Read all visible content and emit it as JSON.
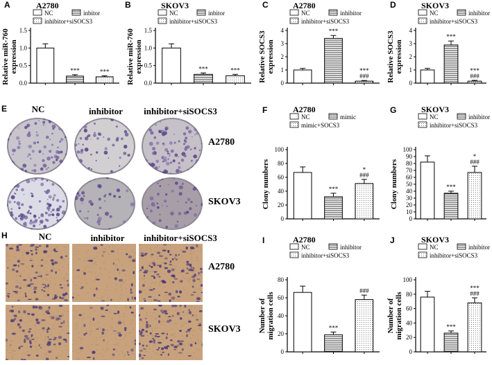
{
  "panels": {
    "A": "A",
    "B": "B",
    "C": "C",
    "D": "D",
    "E": "E",
    "F": "F",
    "G": "G",
    "H": "H",
    "I": "I",
    "J": "J"
  },
  "colony_photos": {
    "columns": [
      "NC",
      "inhibitor",
      "inhibitor+siSOCS3"
    ],
    "rows": [
      "A2780",
      "SKOV3"
    ]
  },
  "migration_photos": {
    "columns": [
      "NC",
      "inhibitor",
      "inhibitor+siSOCS3"
    ],
    "rows": [
      "A2780",
      "SKOV3"
    ]
  },
  "colors": {
    "bar_edge": "#000000",
    "dish_bg": "#d9d6dc",
    "stain": "#5b4a8a",
    "membrane": "#c9a47c"
  },
  "chart_data": [
    {
      "id": "A",
      "type": "bar",
      "title": "A2780",
      "xlabel": "",
      "ylabel": "Relative miR-760 expression",
      "categories": [
        "NC",
        "inhibitor",
        "inhibitor+siSOCS3"
      ],
      "values": [
        1.0,
        0.2,
        0.18
      ],
      "errors": [
        0.12,
        0.04,
        0.03
      ],
      "marks": [
        "",
        "***",
        "***"
      ],
      "patterns": [
        "none",
        "horizontal",
        "dots"
      ],
      "ylim": [
        0,
        1.5
      ],
      "yticks": [
        "0.0",
        "0.5",
        "1.0",
        "1.5"
      ],
      "legend": [
        "NC",
        "inbitor",
        "inhibitor+siSOCS3"
      ]
    },
    {
      "id": "B",
      "type": "bar",
      "title": "SKOV3",
      "xlabel": "",
      "ylabel": "Relative miR-760 expression",
      "categories": [
        "NC",
        "inhibitor",
        "inhibitor+siSOCS3"
      ],
      "values": [
        1.0,
        0.25,
        0.21
      ],
      "errors": [
        0.12,
        0.04,
        0.04
      ],
      "marks": [
        "",
        "***",
        "***"
      ],
      "patterns": [
        "none",
        "horizontal",
        "dots"
      ],
      "ylim": [
        0,
        1.5
      ],
      "yticks": [
        "0.0",
        "0.5",
        "1.0",
        "1.5"
      ],
      "legend": [
        "NC",
        "inbitor",
        "inhibitor+siSOCS3"
      ]
    },
    {
      "id": "C",
      "type": "bar",
      "title": "A2780",
      "xlabel": "",
      "ylabel": "Relative SOCS3 expression",
      "categories": [
        "NC",
        "inhibitor",
        "inhibitor+siSOCS3"
      ],
      "values": [
        1.0,
        3.4,
        0.15
      ],
      "errors": [
        0.12,
        0.22,
        0.05
      ],
      "marks": [
        "",
        "***",
        "***\n###"
      ],
      "patterns": [
        "none",
        "horizontal",
        "dots"
      ],
      "ylim": [
        0,
        4
      ],
      "yticks": [
        "0",
        "1",
        "2",
        "3",
        "4"
      ],
      "legend": [
        "NC",
        "inhibitor",
        "inhibitor+siSOCS3"
      ]
    },
    {
      "id": "D",
      "type": "bar",
      "title": "SKOV3",
      "xlabel": "",
      "ylabel": "Relative SOCS3 expression",
      "categories": [
        "NC",
        "inhibitor",
        "inhibitor+siSOCS3"
      ],
      "values": [
        1.0,
        2.9,
        0.15
      ],
      "errors": [
        0.12,
        0.3,
        0.06
      ],
      "marks": [
        "",
        "***",
        "***\n###"
      ],
      "patterns": [
        "none",
        "horizontal",
        "dots"
      ],
      "ylim": [
        0,
        4
      ],
      "yticks": [
        "0",
        "1",
        "2",
        "3",
        "4"
      ],
      "legend": [
        "NC",
        "inhibitor",
        "inhibitor+siSOCS3"
      ]
    },
    {
      "id": "F",
      "type": "bar",
      "title": "A2780",
      "xlabel": "",
      "ylabel": "Clony numbers",
      "categories": [
        "NC",
        "mimic",
        "mimic+SOCS3"
      ],
      "values": [
        67,
        32,
        51
      ],
      "errors": [
        8,
        5,
        6
      ],
      "marks": [
        "",
        "***",
        "*\n###"
      ],
      "patterns": [
        "none",
        "horizontal",
        "dots"
      ],
      "ylim": [
        0,
        100
      ],
      "yticks": [
        "0",
        "20",
        "40",
        "60",
        "80",
        "100"
      ],
      "legend": [
        "NC",
        "mimic",
        "mimic+SOCS3"
      ]
    },
    {
      "id": "G",
      "type": "bar",
      "title": "SKOV3",
      "xlabel": "",
      "ylabel": "Clony numbers",
      "categories": [
        "NC",
        "inhibitor",
        "inhibitor+siSOCS3"
      ],
      "values": [
        82,
        37,
        67
      ],
      "errors": [
        9,
        3,
        9
      ],
      "marks": [
        "",
        "***",
        "*\n###"
      ],
      "patterns": [
        "none",
        "horizontal",
        "dots"
      ],
      "ylim": [
        0,
        100
      ],
      "yticks": [
        "0",
        "10",
        "20",
        "30",
        "40",
        "50",
        "60",
        "70",
        "80",
        "90",
        "100"
      ],
      "legend": [
        "NC",
        "inhibitor",
        "inhibitor+siSOCS3"
      ]
    },
    {
      "id": "I",
      "type": "bar",
      "title": "A2780",
      "xlabel": "",
      "ylabel": "Number of migration cells",
      "categories": [
        "NC",
        "inhibitor",
        "inhibitor+siSOCS3"
      ],
      "values": [
        66,
        19,
        58
      ],
      "errors": [
        7,
        3,
        5
      ],
      "marks": [
        "",
        "***",
        "###"
      ],
      "patterns": [
        "none",
        "horizontal",
        "dots"
      ],
      "ylim": [
        0,
        80
      ],
      "yticks": [
        "0",
        "20",
        "40",
        "60",
        "80"
      ],
      "legend": [
        "NC",
        "inhibitor",
        "inhibitor+siSOCS3"
      ]
    },
    {
      "id": "J",
      "type": "bar",
      "title": "SKOV3",
      "xlabel": "",
      "ylabel": "Number of migration cells",
      "categories": [
        "NC",
        "inhibitor",
        "inhibitor+siSOCS3"
      ],
      "values": [
        76,
        26,
        68
      ],
      "errors": [
        8,
        3,
        7
      ],
      "marks": [
        "",
        "***",
        "***\n###"
      ],
      "patterns": [
        "none",
        "horizontal",
        "dots"
      ],
      "ylim": [
        0,
        100
      ],
      "yticks": [
        "0",
        "20",
        "40",
        "60",
        "80",
        "100"
      ],
      "legend": [
        "NC",
        "inhibitor",
        "inhibitor+siSOCS3"
      ]
    }
  ]
}
